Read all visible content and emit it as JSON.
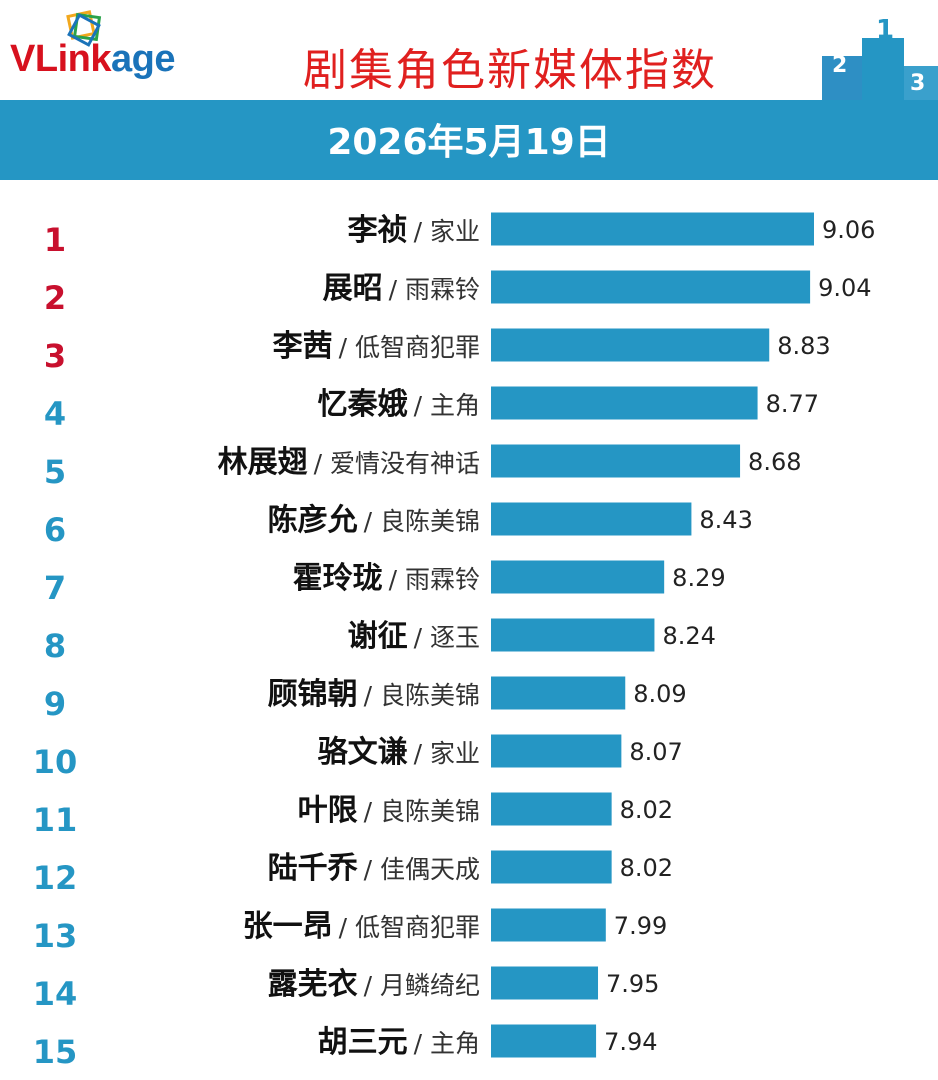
{
  "header": {
    "logo": {
      "part1": "VL",
      "part2": "ink",
      "part3": "age"
    },
    "title": "剧集角色新媒体指数",
    "date": "2026年5月19日"
  },
  "colors": {
    "accent": "#2596c4",
    "title_red": "#e0201f",
    "rank_top3": "#c8102e",
    "rank_other": "#2596c4"
  },
  "chart_data": {
    "type": "bar",
    "orientation": "horizontal",
    "categories": [
      {
        "rank": "1",
        "name": "李祯",
        "drama": "/ 家业"
      },
      {
        "rank": "2",
        "name": "展昭",
        "drama": "/ 雨霖铃"
      },
      {
        "rank": "3",
        "name": "李茜",
        "drama": "/ 低智商犯罪"
      },
      {
        "rank": "4",
        "name": "忆秦娥",
        "drama": "/ 主角"
      },
      {
        "rank": "5",
        "name": "林展翅",
        "drama": "/ 爱情没有神话"
      },
      {
        "rank": "6",
        "name": "陈彦允",
        "drama": "/ 良陈美锦"
      },
      {
        "rank": "7",
        "name": "霍玲珑",
        "drama": "/ 雨霖铃"
      },
      {
        "rank": "8",
        "name": "谢征",
        "drama": "/ 逐玉"
      },
      {
        "rank": "9",
        "name": "顾锦朝",
        "drama": "/ 良陈美锦"
      },
      {
        "rank": "10",
        "name": "骆文谦",
        "drama": "/ 家业"
      },
      {
        "rank": "11",
        "name": "叶限",
        "drama": "/ 良陈美锦"
      },
      {
        "rank": "12",
        "name": "陆千乔",
        "drama": "/ 佳偶天成"
      },
      {
        "rank": "13",
        "name": "张一昂",
        "drama": "/ 低智商犯罪"
      },
      {
        "rank": "14",
        "name": "露芜衣",
        "drama": "/ 月鳞绮纪"
      },
      {
        "rank": "15",
        "name": "胡三元",
        "drama": "/ 主角"
      }
    ],
    "values": [
      "9.06",
      "9.04",
      "8.83",
      "8.77",
      "8.68",
      "8.43",
      "8.29",
      "8.24",
      "8.09",
      "8.07",
      "8.02",
      "8.02",
      "7.99",
      "7.95",
      "7.94"
    ],
    "xlim": [
      7.4,
      9.06
    ],
    "grid": false,
    "legend": "none"
  }
}
